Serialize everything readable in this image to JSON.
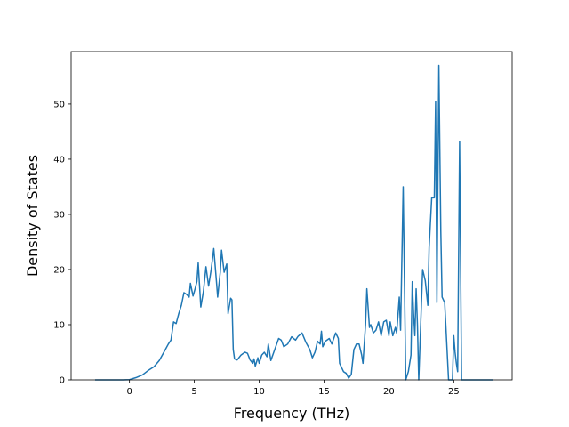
{
  "chart_data": {
    "type": "line",
    "title": "",
    "xlabel": "Frequency (THz)",
    "ylabel": "Density of States",
    "xlim": [
      -4.5,
      29.5
    ],
    "ylim": [
      0,
      59.5
    ],
    "xticks": [
      0,
      5,
      10,
      15,
      20,
      25
    ],
    "yticks": [
      0,
      10,
      20,
      30,
      40,
      50
    ],
    "grid": false,
    "legend": "none",
    "series": [
      {
        "color": "#1f77b4",
        "points": [
          [
            -2.6,
            0
          ],
          [
            -1.5,
            0
          ],
          [
            -0.5,
            0
          ],
          [
            0.0,
            0.05
          ],
          [
            0.5,
            0.4
          ],
          [
            1.0,
            0.9
          ],
          [
            1.5,
            1.8
          ],
          [
            1.9,
            2.4
          ],
          [
            2.3,
            3.5
          ],
          [
            2.7,
            5.2
          ],
          [
            3.0,
            6.5
          ],
          [
            3.2,
            7.2
          ],
          [
            3.4,
            10.5
          ],
          [
            3.6,
            10.2
          ],
          [
            3.8,
            12.0
          ],
          [
            4.0,
            13.5
          ],
          [
            4.2,
            15.8
          ],
          [
            4.4,
            15.5
          ],
          [
            4.6,
            15.0
          ],
          [
            4.7,
            17.5
          ],
          [
            4.9,
            15.2
          ],
          [
            5.0,
            16.0
          ],
          [
            5.2,
            17.8
          ],
          [
            5.3,
            21.2
          ],
          [
            5.5,
            13.2
          ],
          [
            5.7,
            16.0
          ],
          [
            5.9,
            20.5
          ],
          [
            6.1,
            17.0
          ],
          [
            6.3,
            20.0
          ],
          [
            6.5,
            23.8
          ],
          [
            6.7,
            18.0
          ],
          [
            6.8,
            15.0
          ],
          [
            7.0,
            19.5
          ],
          [
            7.1,
            23.5
          ],
          [
            7.3,
            19.5
          ],
          [
            7.5,
            21.0
          ],
          [
            7.6,
            12.0
          ],
          [
            7.8,
            14.8
          ],
          [
            7.9,
            14.5
          ],
          [
            8.0,
            5.5
          ],
          [
            8.1,
            3.8
          ],
          [
            8.3,
            3.6
          ],
          [
            8.6,
            4.5
          ],
          [
            8.9,
            5.0
          ],
          [
            9.1,
            4.8
          ],
          [
            9.3,
            3.6
          ],
          [
            9.5,
            3.0
          ],
          [
            9.6,
            3.8
          ],
          [
            9.7,
            2.5
          ],
          [
            9.9,
            4.0
          ],
          [
            10.0,
            3.0
          ],
          [
            10.2,
            4.5
          ],
          [
            10.4,
            5.0
          ],
          [
            10.6,
            4.2
          ],
          [
            10.7,
            6.5
          ],
          [
            10.9,
            3.5
          ],
          [
            11.2,
            5.5
          ],
          [
            11.5,
            7.5
          ],
          [
            11.7,
            7.2
          ],
          [
            11.9,
            6.0
          ],
          [
            12.2,
            6.5
          ],
          [
            12.5,
            7.8
          ],
          [
            12.8,
            7.2
          ],
          [
            13.0,
            7.9
          ],
          [
            13.3,
            8.5
          ],
          [
            13.6,
            6.8
          ],
          [
            13.9,
            5.5
          ],
          [
            14.1,
            4.0
          ],
          [
            14.3,
            5.0
          ],
          [
            14.5,
            7.0
          ],
          [
            14.7,
            6.5
          ],
          [
            14.8,
            8.8
          ],
          [
            14.9,
            6.0
          ],
          [
            15.1,
            7.0
          ],
          [
            15.4,
            7.5
          ],
          [
            15.6,
            6.5
          ],
          [
            15.9,
            8.5
          ],
          [
            16.1,
            7.5
          ],
          [
            16.2,
            3.0
          ],
          [
            16.5,
            1.5
          ],
          [
            16.7,
            1.2
          ],
          [
            16.9,
            0.3
          ],
          [
            17.1,
            1.0
          ],
          [
            17.3,
            5.5
          ],
          [
            17.5,
            6.5
          ],
          [
            17.7,
            6.5
          ],
          [
            17.9,
            4.5
          ],
          [
            18.0,
            3.0
          ],
          [
            18.2,
            10.0
          ],
          [
            18.3,
            16.5
          ],
          [
            18.5,
            9.5
          ],
          [
            18.6,
            10.0
          ],
          [
            18.8,
            8.5
          ],
          [
            19.0,
            9.0
          ],
          [
            19.2,
            10.5
          ],
          [
            19.4,
            8.0
          ],
          [
            19.6,
            10.5
          ],
          [
            19.8,
            10.8
          ],
          [
            20.0,
            8.0
          ],
          [
            20.1,
            10.5
          ],
          [
            20.3,
            8.0
          ],
          [
            20.5,
            9.5
          ],
          [
            20.6,
            8.5
          ],
          [
            20.8,
            15.0
          ],
          [
            20.9,
            9.0
          ],
          [
            21.1,
            35.0
          ],
          [
            21.3,
            0.0
          ],
          [
            21.5,
            1.5
          ],
          [
            21.7,
            4.5
          ],
          [
            21.8,
            17.8
          ],
          [
            21.9,
            12.0
          ],
          [
            22.0,
            8.0
          ],
          [
            22.1,
            16.5
          ],
          [
            22.2,
            10.0
          ],
          [
            22.3,
            0.0
          ],
          [
            22.6,
            20.0
          ],
          [
            22.8,
            18.0
          ],
          [
            23.0,
            13.5
          ],
          [
            23.1,
            24.0
          ],
          [
            23.3,
            33.0
          ],
          [
            23.5,
            33.0
          ],
          [
            23.6,
            50.5
          ],
          [
            23.7,
            14.0
          ],
          [
            23.85,
            57.0
          ],
          [
            24.0,
            27.0
          ],
          [
            24.1,
            15.0
          ],
          [
            24.3,
            14.0
          ],
          [
            24.6,
            0.0
          ],
          [
            24.9,
            0.0
          ],
          [
            25.0,
            8.0
          ],
          [
            25.1,
            5.0
          ],
          [
            25.2,
            3.0
          ],
          [
            25.3,
            1.5
          ],
          [
            25.45,
            43.2
          ],
          [
            25.6,
            0.0
          ],
          [
            26.5,
            0.0
          ],
          [
            28.0,
            0.0
          ]
        ]
      }
    ]
  }
}
